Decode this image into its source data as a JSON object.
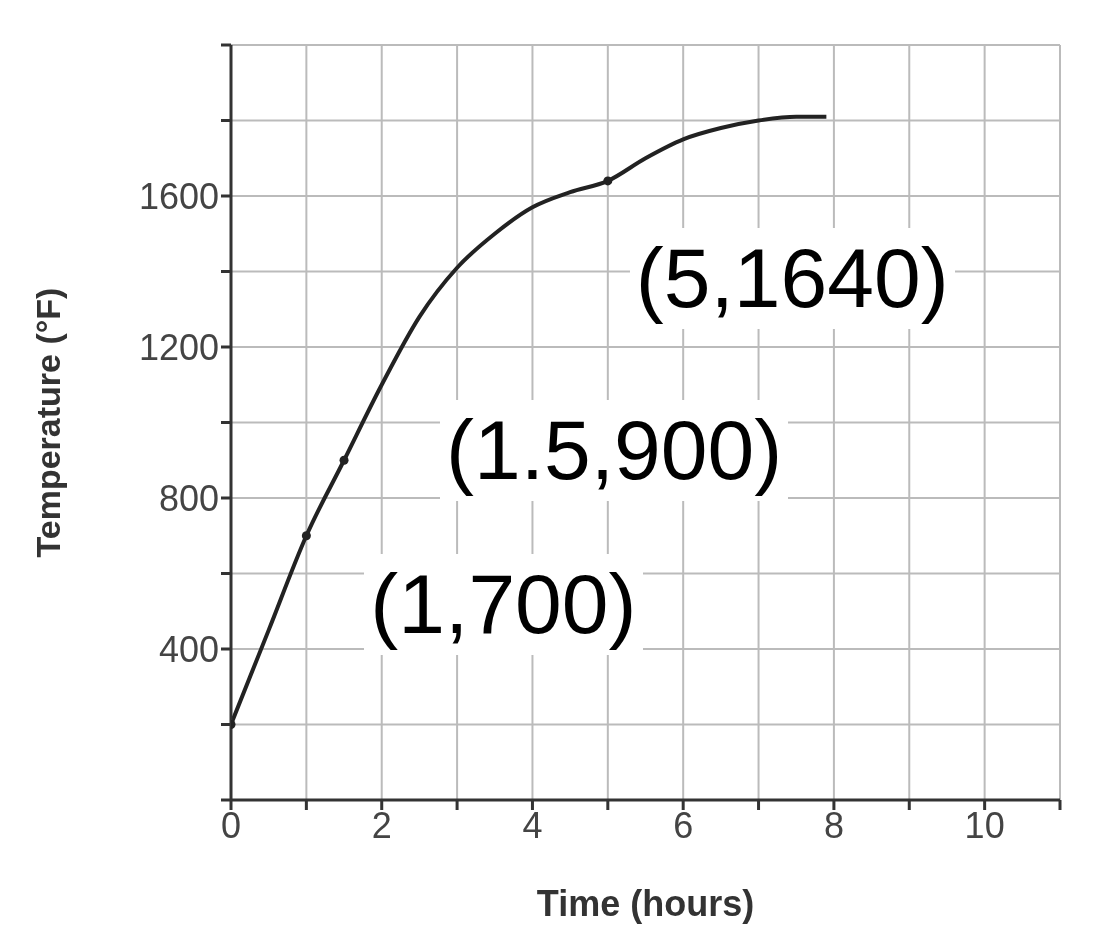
{
  "chart_data": {
    "type": "line",
    "xlabel": "Time (hours)",
    "ylabel": "Temperature (°F)",
    "xlim": [
      0,
      11
    ],
    "xticks": [
      0,
      {
        "value": 1,
        "label": null
      },
      2,
      {
        "value": 3,
        "label": null
      },
      4,
      {
        "value": 5,
        "label": null
      },
      6,
      {
        "value": 7,
        "label": null
      },
      8,
      {
        "value": 9,
        "label": null
      },
      10,
      {
        "value": 11,
        "label": null
      }
    ],
    "ylim": [
      0,
      2000
    ],
    "yticks": [
      {
        "value": 0,
        "label": null
      },
      {
        "value": 200,
        "label": null
      },
      400,
      {
        "value": 600,
        "label": null
      },
      800,
      {
        "value": 1000,
        "label": null
      },
      1200,
      {
        "value": 1400,
        "label": null
      },
      1600,
      {
        "value": 1800,
        "label": null
      },
      {
        "value": 2000,
        "label": null
      }
    ],
    "grid": true,
    "line_style": "solid",
    "series": [
      {
        "color": "#222222",
        "marker": "none",
        "x": [
          0,
          0.5,
          1,
          1.5,
          2,
          2.5,
          3,
          3.5,
          4,
          4.5,
          5,
          5.5,
          6,
          6.5,
          7,
          7.5,
          7.9
        ],
        "values": [
          200,
          450,
          700,
          900,
          1100,
          1280,
          1410,
          1500,
          1570,
          1610,
          1640,
          1700,
          1750,
          1780,
          1800,
          1810,
          1810
        ]
      },
      {
        "type": "scatter",
        "color": "#222222",
        "marker": "circle",
        "x": [
          0,
          1,
          1.5,
          5
        ],
        "values": [
          200,
          700,
          900,
          1640
        ]
      }
    ],
    "annotations": [
      {
        "text": "(5,1640)",
        "x": 5,
        "y": 1640
      },
      {
        "text": "(1.5,900)",
        "x": 1.5,
        "y": 900
      },
      {
        "text": "(1,700)",
        "x": 1,
        "y": 700
      }
    ]
  }
}
